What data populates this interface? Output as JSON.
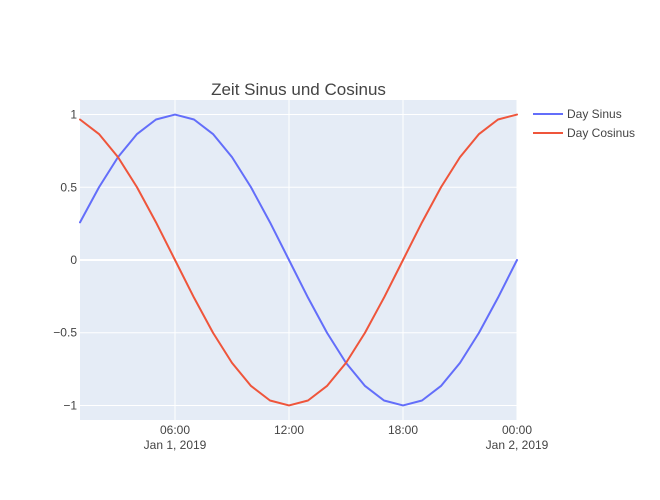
{
  "chart_data": {
    "type": "line",
    "title": "Zeit Sinus und Cosinus",
    "xlabel": "",
    "ylabel": "",
    "x_range_hours": [
      1,
      24
    ],
    "ylim": [
      -1.1,
      1.1
    ],
    "grid": true,
    "legend_position": "top-right",
    "x_ticks": [
      {
        "hour": 6,
        "label": "06:00",
        "sublabel": "Jan 1, 2019"
      },
      {
        "hour": 12,
        "label": "12:00",
        "sublabel": ""
      },
      {
        "hour": 18,
        "label": "18:00",
        "sublabel": ""
      },
      {
        "hour": 24,
        "label": "00:00",
        "sublabel": "Jan 2, 2019"
      }
    ],
    "y_ticks": [
      {
        "value": 1,
        "label": "1"
      },
      {
        "value": 0.5,
        "label": "0.5"
      },
      {
        "value": 0,
        "label": "0"
      },
      {
        "value": -0.5,
        "label": "−0.5"
      },
      {
        "value": -1,
        "label": "−1"
      }
    ],
    "x_hours": [
      1,
      2,
      3,
      4,
      5,
      6,
      7,
      8,
      9,
      10,
      11,
      12,
      13,
      14,
      15,
      16,
      17,
      18,
      19,
      20,
      21,
      22,
      23,
      24
    ],
    "series": [
      {
        "name": "Day Sinus",
        "color": "#636efa",
        "values": [
          0.2588,
          0.5,
          0.7071,
          0.866,
          0.9659,
          1.0,
          0.9659,
          0.866,
          0.7071,
          0.5,
          0.2588,
          0.0,
          -0.2588,
          -0.5,
          -0.7071,
          -0.866,
          -0.9659,
          -1.0,
          -0.9659,
          -0.866,
          -0.7071,
          -0.5,
          -0.2588,
          0.0
        ]
      },
      {
        "name": "Day Cosinus",
        "color": "#ef553b",
        "values": [
          0.9659,
          0.866,
          0.7071,
          0.5,
          0.2588,
          0.0,
          -0.2588,
          -0.5,
          -0.7071,
          -0.866,
          -0.9659,
          -1.0,
          -0.9659,
          -0.866,
          -0.7071,
          -0.5,
          -0.2588,
          0.0,
          0.2588,
          0.5,
          0.7071,
          0.866,
          0.9659,
          1.0
        ]
      }
    ]
  },
  "colors": {
    "plot_background": "#e5ecf6",
    "grid": "#ffffff",
    "text": "#444444"
  }
}
